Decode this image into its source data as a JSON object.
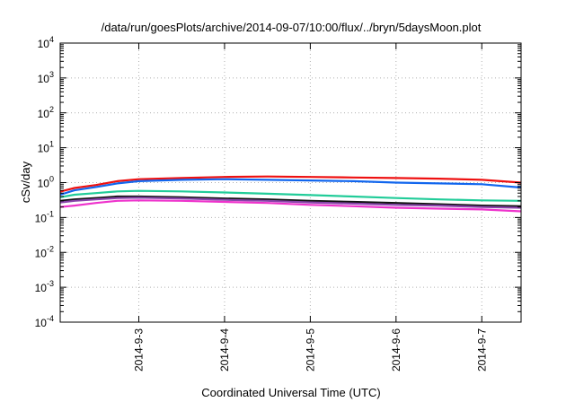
{
  "chart_data": {
    "type": "line",
    "title": "/data/run/goesPlots/archive/2014-09-07/10:00/flux/../bryn/5daysMoon.plot",
    "xlabel": "Coordinated Universal Time (UTC)",
    "ylabel": "cSv/day",
    "yscale": "log",
    "xlim": [
      "2014-09-02T02:00",
      "2014-09-07T11:00"
    ],
    "ylim": [
      0.0001,
      10000
    ],
    "x_ticks": [
      "2014-9-3",
      "2014-9-4",
      "2014-9-5",
      "2014-9-6",
      "2014-9-7"
    ],
    "y_ticks": [
      {
        "base": "10",
        "exp": "-4",
        "value": 0.0001
      },
      {
        "base": "10",
        "exp": "-3",
        "value": 0.001
      },
      {
        "base": "10",
        "exp": "-2",
        "value": 0.01
      },
      {
        "base": "10",
        "exp": "-1",
        "value": 0.1
      },
      {
        "base": "10",
        "exp": "0",
        "value": 1
      },
      {
        "base": "10",
        "exp": "1",
        "value": 10
      },
      {
        "base": "10",
        "exp": "2",
        "value": 100
      },
      {
        "base": "10",
        "exp": "3",
        "value": 1000
      },
      {
        "base": "10",
        "exp": "4",
        "value": 10000
      }
    ],
    "grid": true,
    "legend": "none",
    "x": [
      "2014-09-02T02:00",
      "2014-09-02T06:00",
      "2014-09-02T12:00",
      "2014-09-02T18:00",
      "2014-09-03T00:00",
      "2014-09-03T12:00",
      "2014-09-04T00:00",
      "2014-09-04T12:00",
      "2014-09-05T00:00",
      "2014-09-05T12:00",
      "2014-09-06T00:00",
      "2014-09-06T12:00",
      "2014-09-07T00:00",
      "2014-09-07T11:00"
    ],
    "series": [
      {
        "color": "#ee1111",
        "values": [
          0.55,
          0.7,
          0.85,
          1.1,
          1.25,
          1.35,
          1.45,
          1.5,
          1.45,
          1.4,
          1.35,
          1.3,
          1.2,
          1.0
        ]
      },
      {
        "color": "#1166ee",
        "values": [
          0.45,
          0.6,
          0.75,
          0.95,
          1.1,
          1.2,
          1.25,
          1.2,
          1.15,
          1.1,
          1.0,
          0.95,
          0.9,
          0.72
        ]
      },
      {
        "color": "#22cc99",
        "values": [
          0.38,
          0.45,
          0.5,
          0.56,
          0.58,
          0.56,
          0.52,
          0.48,
          0.44,
          0.4,
          0.36,
          0.33,
          0.31,
          0.3
        ]
      },
      {
        "color": "#111111",
        "values": [
          0.3,
          0.33,
          0.36,
          0.4,
          0.4,
          0.38,
          0.35,
          0.33,
          0.3,
          0.28,
          0.26,
          0.24,
          0.22,
          0.21
        ]
      },
      {
        "color": "#8844aa",
        "values": [
          0.27,
          0.3,
          0.33,
          0.36,
          0.37,
          0.35,
          0.32,
          0.3,
          0.27,
          0.25,
          0.23,
          0.22,
          0.2,
          0.19
        ]
      },
      {
        "color": "#ee33cc",
        "values": [
          0.2,
          0.22,
          0.26,
          0.3,
          0.31,
          0.3,
          0.28,
          0.26,
          0.23,
          0.21,
          0.19,
          0.18,
          0.17,
          0.15
        ]
      }
    ]
  }
}
